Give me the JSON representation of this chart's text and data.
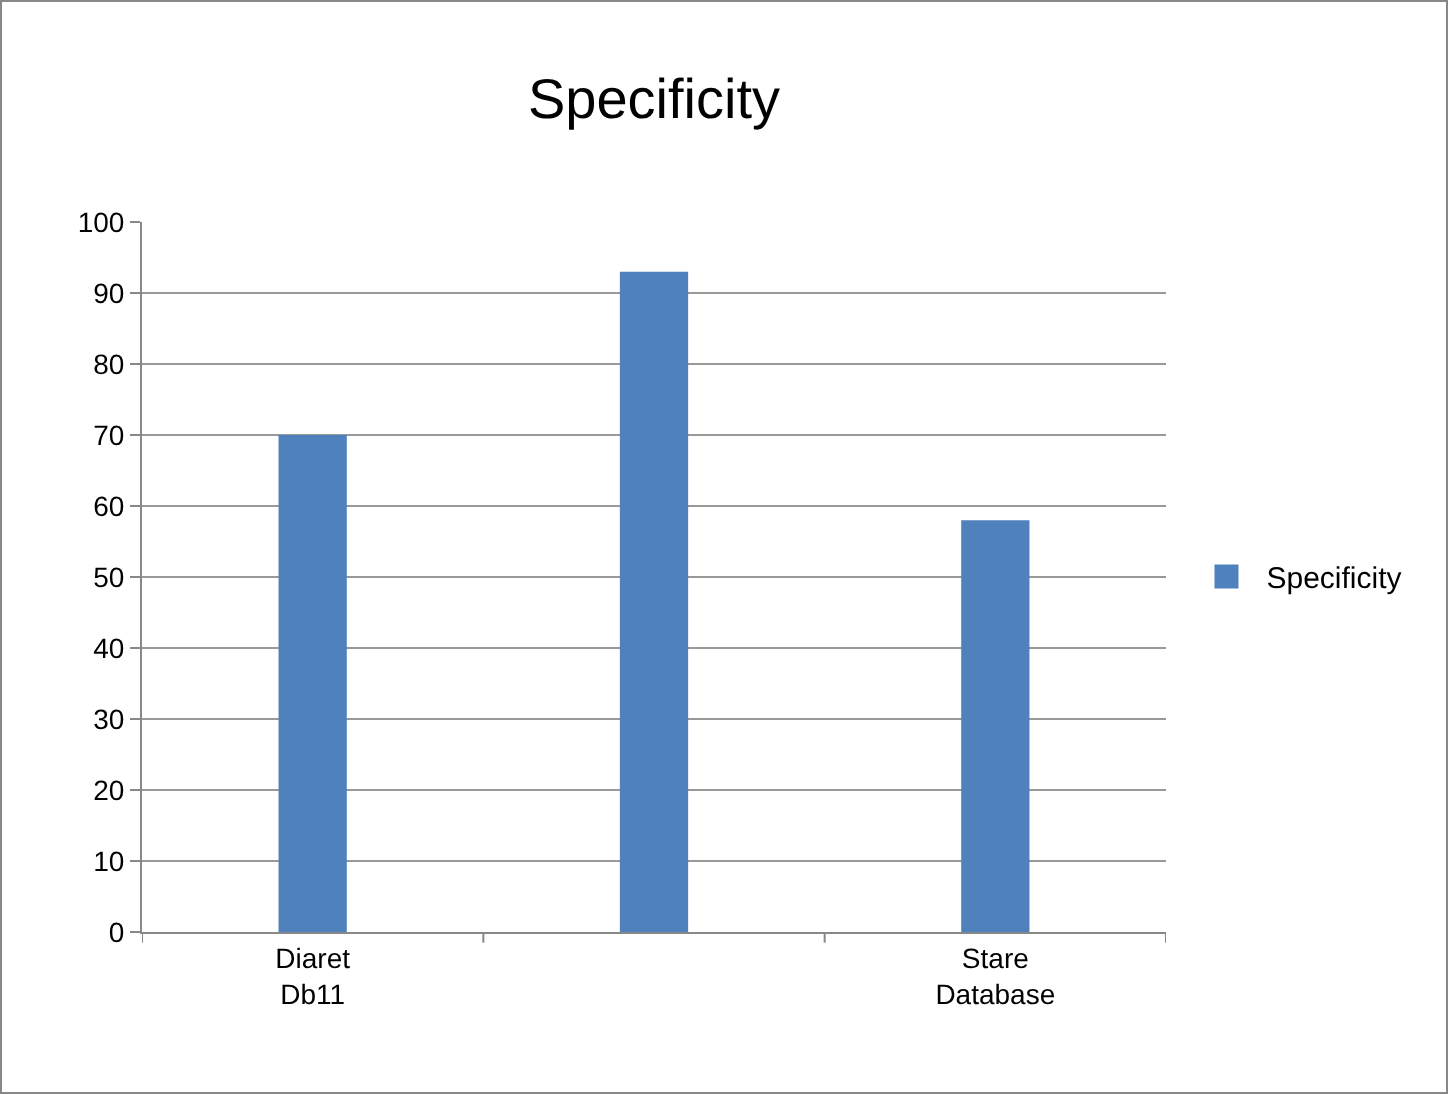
{
  "chart_data": {
    "type": "bar",
    "title": "Specificity",
    "categories": [
      "Diaret Db11",
      null,
      "Stare Database"
    ],
    "series": [
      {
        "name": "Specificity",
        "color": "#4f81bd",
        "values": [
          70,
          93,
          58
        ]
      }
    ],
    "ylim": [
      0,
      100
    ],
    "yticks": [
      0,
      10,
      20,
      30,
      40,
      50,
      60,
      70,
      80,
      90,
      100
    ],
    "grid": "y",
    "legend": "right"
  }
}
